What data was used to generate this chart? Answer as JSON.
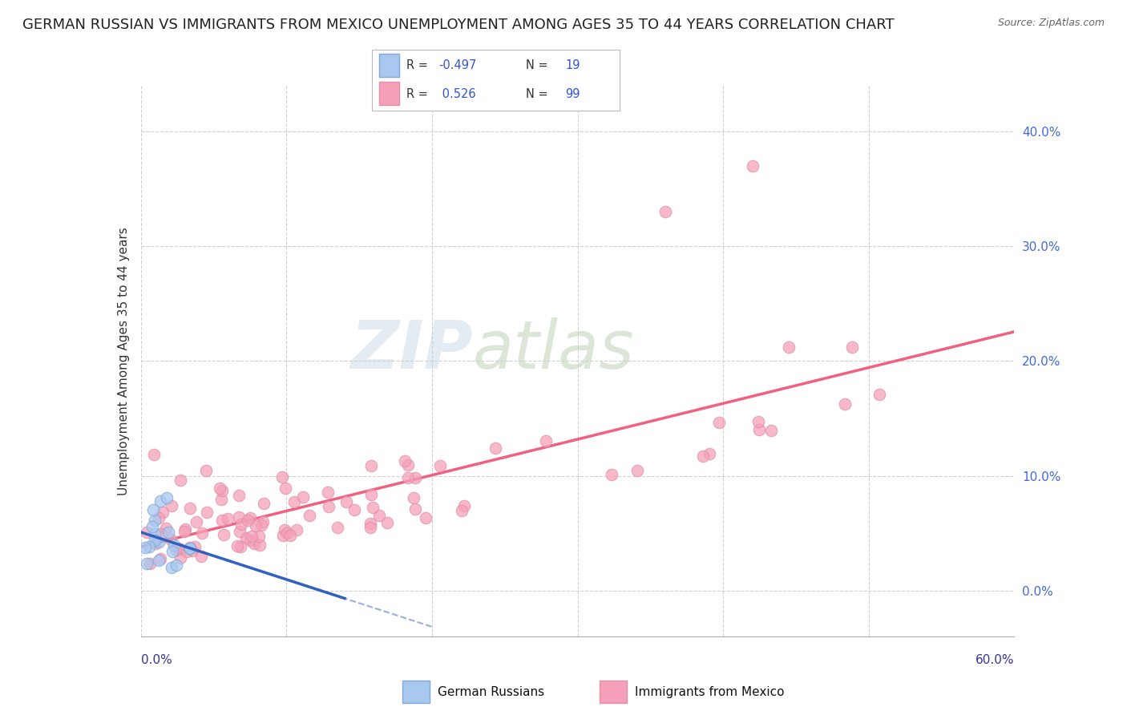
{
  "title": "GERMAN RUSSIAN VS IMMIGRANTS FROM MEXICO UNEMPLOYMENT AMONG AGES 35 TO 44 YEARS CORRELATION CHART",
  "source": "Source: ZipAtlas.com",
  "ylabel": "Unemployment Among Ages 35 to 44 years",
  "xlim": [
    0.0,
    0.6
  ],
  "ylim": [
    -0.04,
    0.44
  ],
  "yticks": [
    0.0,
    0.1,
    0.2,
    0.3,
    0.4
  ],
  "xticks": [
    0.0,
    0.1,
    0.2,
    0.3,
    0.4,
    0.5,
    0.6
  ],
  "scatter_color_gr": "#a8c8f0",
  "scatter_color_mex": "#f5a0b8",
  "trend_color_gr": "#3060c0",
  "trend_color_mex": "#f06080",
  "background_color": "#ffffff",
  "grid_color": "#d0d0d0",
  "watermark_zip": "ZIP",
  "watermark_atlas": "atlas",
  "title_fontsize": 13,
  "axis_label_fontsize": 11,
  "tick_fontsize": 11,
  "legend_r1": "R = -0.497",
  "legend_n1": "N = 19",
  "legend_r2": "R =  0.526",
  "legend_n2": "N = 99",
  "legend_label1": "German Russians",
  "legend_label2": "Immigrants from Mexico"
}
